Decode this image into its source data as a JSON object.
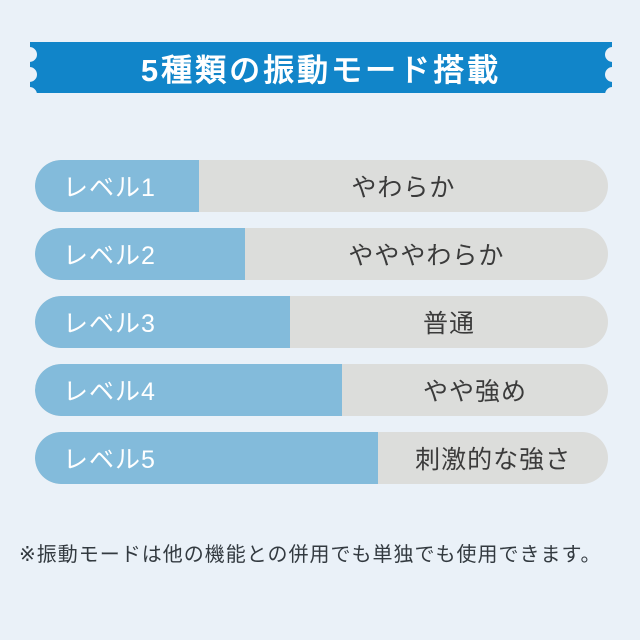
{
  "banner": {
    "title": "5種類の振動モード搭載",
    "bg_color": "#1185c9",
    "text_color": "#ffffff"
  },
  "levels": [
    {
      "label": "レベル1",
      "description": "やわらか",
      "fill_percent": 28.6
    },
    {
      "label": "レベル2",
      "description": "やややわらか",
      "fill_percent": 36.6
    },
    {
      "label": "レベル3",
      "description": "普通",
      "fill_percent": 44.5
    },
    {
      "label": "レベル4",
      "description": "やや強め",
      "fill_percent": 53.6
    },
    {
      "label": "レベル5",
      "description": "刺激的な強さ",
      "fill_percent": 59.9
    }
  ],
  "colors": {
    "page_bg": "#eaf1f8",
    "bar_fill": "#83bbdb",
    "bar_track": "#dcdddb",
    "level_text": "#ffffff",
    "description_text": "#3b3b3b"
  },
  "footnote": "※振動モードは他の機能との併用でも単独でも使用できます。",
  "chart_data": {
    "type": "bar",
    "orientation": "horizontal",
    "title": "5種類の振動モード搭載",
    "categories": [
      "レベル1",
      "レベル2",
      "レベル3",
      "レベル4",
      "レベル5"
    ],
    "values": [
      28.6,
      36.6,
      44.5,
      53.6,
      59.9
    ],
    "value_meaning": "percent of track filled (relative vibration strength)",
    "value_labels": [
      "やわらか",
      "やややわらか",
      "普通",
      "やや強め",
      "刺激的な強さ"
    ],
    "xlim": [
      0,
      100
    ],
    "grid": false,
    "legend": false,
    "annotation": "※振動モードは他の機能との併用でも単独でも使用できます。"
  }
}
